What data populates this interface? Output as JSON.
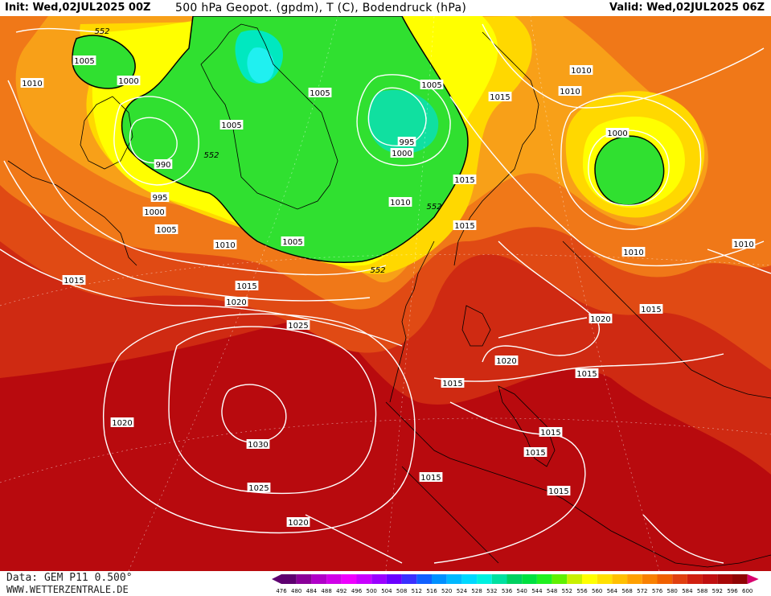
{
  "header": {
    "init": "Init: Wed,02JUL2025 00Z",
    "title": "500 hPa Geopot. (gpdm), T (C), Bodendruck (hPa)",
    "valid": "Valid: Wed,02JUL2025 06Z"
  },
  "footer": {
    "data_source": "Data: GEM P11 0.500°",
    "website": "WWW.WETTERZENTRALE.DE"
  },
  "map": {
    "geopotential_label": "552",
    "geopotential_label_count": 4,
    "pressure_labels": [
      "990",
      "995",
      "995",
      "1000",
      "1000",
      "1000",
      "1000",
      "1005",
      "1005",
      "1005",
      "1005",
      "1005",
      "1005",
      "1010",
      "1010",
      "1010",
      "1010",
      "1010",
      "1010",
      "1010",
      "1015",
      "1015",
      "1015",
      "1015",
      "1015",
      "1015",
      "1015",
      "1015",
      "1015",
      "1015",
      "1015",
      "1015",
      "1020",
      "1020",
      "1020",
      "1020",
      "1020",
      "1025",
      "1025",
      "1030"
    ]
  },
  "color_scale": {
    "ticks": [
      "476",
      "480",
      "484",
      "488",
      "492",
      "496",
      "500",
      "504",
      "508",
      "512",
      "516",
      "520",
      "524",
      "528",
      "532",
      "536",
      "540",
      "544",
      "548",
      "552",
      "556",
      "560",
      "564",
      "568",
      "572",
      "576",
      "580",
      "584",
      "588",
      "592",
      "596",
      "600"
    ],
    "colors": [
      "#5e0070",
      "#8a0099",
      "#b000c8",
      "#d000e8",
      "#ee00ff",
      "#c800ff",
      "#9a00ff",
      "#6a00ff",
      "#3a30ff",
      "#1060ff",
      "#0090ff",
      "#00b8ff",
      "#00d8ff",
      "#00f0e0",
      "#00e0a0",
      "#00d060",
      "#00e040",
      "#20f020",
      "#60f000",
      "#c8f000",
      "#ffff00",
      "#ffe000",
      "#ffc000",
      "#ffa000",
      "#f88000",
      "#f06000",
      "#e04010",
      "#d02010",
      "#c01010",
      "#a80808",
      "#900404",
      "#d8006e"
    ]
  }
}
